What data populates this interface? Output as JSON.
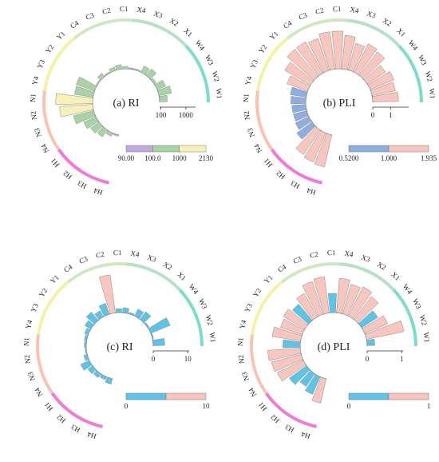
{
  "chart_data": [
    {
      "type": "bar",
      "title": "(a) RI",
      "categories": [
        "W1",
        "W2",
        "W3",
        "W4",
        "X1",
        "X2",
        "X3",
        "X4",
        "C1",
        "C2",
        "C3",
        "C4",
        "Y1",
        "Y2",
        "Y3",
        "Y4",
        "N1",
        "N2",
        "N3",
        "N4",
        "H1",
        "H2",
        "H3",
        "H4"
      ],
      "values": [
        170,
        260,
        190,
        110,
        180,
        160,
        90,
        80,
        110,
        130,
        120,
        90,
        130,
        100,
        450,
        420,
        1900,
        1400,
        500,
        270,
        210,
        180,
        120,
        100
      ],
      "axis_ticks": [
        "100",
        "1000"
      ],
      "scale": "log",
      "legend": {
        "ticks": [
          "90.00",
          "100.0",
          "1000",
          "2130"
        ],
        "colors": [
          "#c3a6e0",
          "#a9d3a6",
          "#f7f0b8"
        ]
      }
    },
    {
      "type": "bar",
      "title": "(b) PLI",
      "categories": [
        "W1",
        "W2",
        "W3",
        "W4",
        "X1",
        "X2",
        "X3",
        "X4",
        "C1",
        "C2",
        "C3",
        "C4",
        "Y1",
        "Y2",
        "Y3",
        "Y4",
        "N1",
        "N2",
        "N3",
        "N4",
        "H1",
        "H2",
        "H3",
        "H4"
      ],
      "values": [
        1.3,
        1.2,
        1.3,
        1.1,
        1.5,
        1.6,
        1.4,
        1.7,
        1.9,
        1.9,
        1.7,
        1.8,
        1.8,
        1.5,
        1.1,
        0.8,
        0.75,
        0.7,
        0.7,
        0.75,
        0.95,
        1.5,
        1.6,
        1.65
      ],
      "axis_ticks": [
        "0",
        "1"
      ],
      "legend": {
        "ticks": [
          "0.5200",
          "1.000",
          "1.935"
        ],
        "colors": [
          "#8faedf",
          "#f6c6bf"
        ]
      }
    },
    {
      "type": "bar",
      "title": "(c) RI",
      "categories": [
        "W1",
        "W2",
        "W3",
        "W4",
        "X1",
        "X2",
        "X3",
        "X4",
        "C1",
        "C2",
        "C3",
        "C4",
        "Y1",
        "Y2",
        "Y3",
        "Y4",
        "N1",
        "N2",
        "N3",
        "N4",
        "H1",
        "H2",
        "H3",
        "H4"
      ],
      "values": [
        3.0,
        0.3,
        5.5,
        0.4,
        2.5,
        2.0,
        0.4,
        1.3,
        1.0,
        10.0,
        3.0,
        1.8,
        2.8,
        1.8,
        1.0,
        0.6,
        0.5,
        0.2,
        0.9,
        2.5,
        1.5,
        1.2,
        0.8,
        1.4
      ],
      "axis_ticks": [
        "0",
        "10"
      ],
      "legend": {
        "ticks": [
          "0",
          "10"
        ],
        "colors": [
          "#5ec3e4",
          "#f6c6bf"
        ]
      }
    },
    {
      "type": "bar",
      "title": "(d) PLI",
      "categories": [
        "W1",
        "W2",
        "W3",
        "W4",
        "X1",
        "X2",
        "X3",
        "X4",
        "C1",
        "C2",
        "C3",
        "C4",
        "Y1",
        "Y2",
        "Y3",
        "Y4",
        "N1",
        "N2",
        "N3",
        "N4",
        "H1",
        "H2",
        "H3",
        "H4"
      ],
      "values": [
        0.2,
        1.0,
        0.65,
        0.5,
        0.75,
        0.85,
        0.8,
        0.9,
        0.5,
        0.95,
        0.9,
        0.7,
        0.55,
        0.65,
        0.6,
        0.75,
        0.45,
        0.85,
        0.8,
        0.75,
        0.55,
        0.4,
        0.5,
        0.65
      ],
      "axis_ticks": [
        "0",
        "1"
      ],
      "legend": {
        "ticks": [
          "0",
          "1"
        ],
        "colors": [
          "#5ec3e4",
          "#f6c6bf"
        ]
      }
    }
  ],
  "groups": [
    {
      "name": "W",
      "color": "#7fdcc8"
    },
    {
      "name": "X",
      "color": "#b7e0c8"
    },
    {
      "name": "C",
      "color": "#cfe8c4"
    },
    {
      "name": "Y",
      "color": "#f4f2a6"
    },
    {
      "name": "N",
      "color": "#f9c3b4"
    },
    {
      "name": "H",
      "color": "#f07ad6"
    }
  ]
}
